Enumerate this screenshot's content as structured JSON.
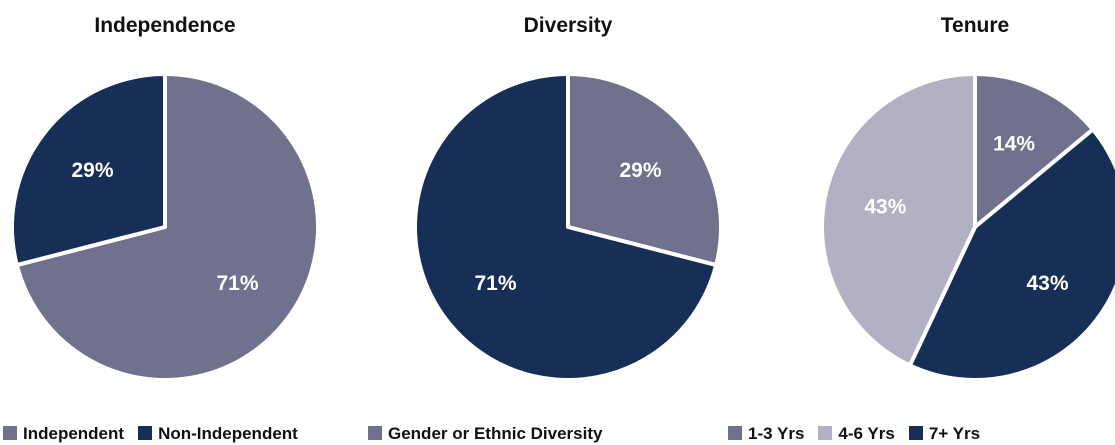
{
  "chart_data": [
    {
      "type": "pie",
      "title": "Independence",
      "slices": [
        {
          "label": "Independent",
          "value": 71,
          "display": "71%",
          "color": "#6f718d"
        },
        {
          "label": "Non-Independent",
          "value": 29,
          "display": "29%",
          "color": "#172f57"
        }
      ],
      "legend": "bottom"
    },
    {
      "type": "pie",
      "title": "Diversity",
      "slices": [
        {
          "label": "Gender or Ethnic Diversity",
          "value": 29,
          "display": "29%",
          "color": "#6f718d"
        },
        {
          "label": "",
          "value": 71,
          "display": "71%",
          "color": "#172f57"
        }
      ],
      "legend": "bottom"
    },
    {
      "type": "pie",
      "title": "Tenure",
      "slices": [
        {
          "label": "1-3 Yrs",
          "value": 14,
          "display": "14%",
          "color": "#6f718d"
        },
        {
          "label": "7+ Yrs",
          "value": 43,
          "display": "43%",
          "color": "#172f57"
        },
        {
          "label": "4-6 Yrs",
          "value": 43,
          "display": "43%",
          "color": "#b2b1c4"
        }
      ],
      "legend_order": [
        "1-3 Yrs",
        "4-6 Yrs",
        "7+ Yrs"
      ],
      "legend": "bottom"
    }
  ]
}
